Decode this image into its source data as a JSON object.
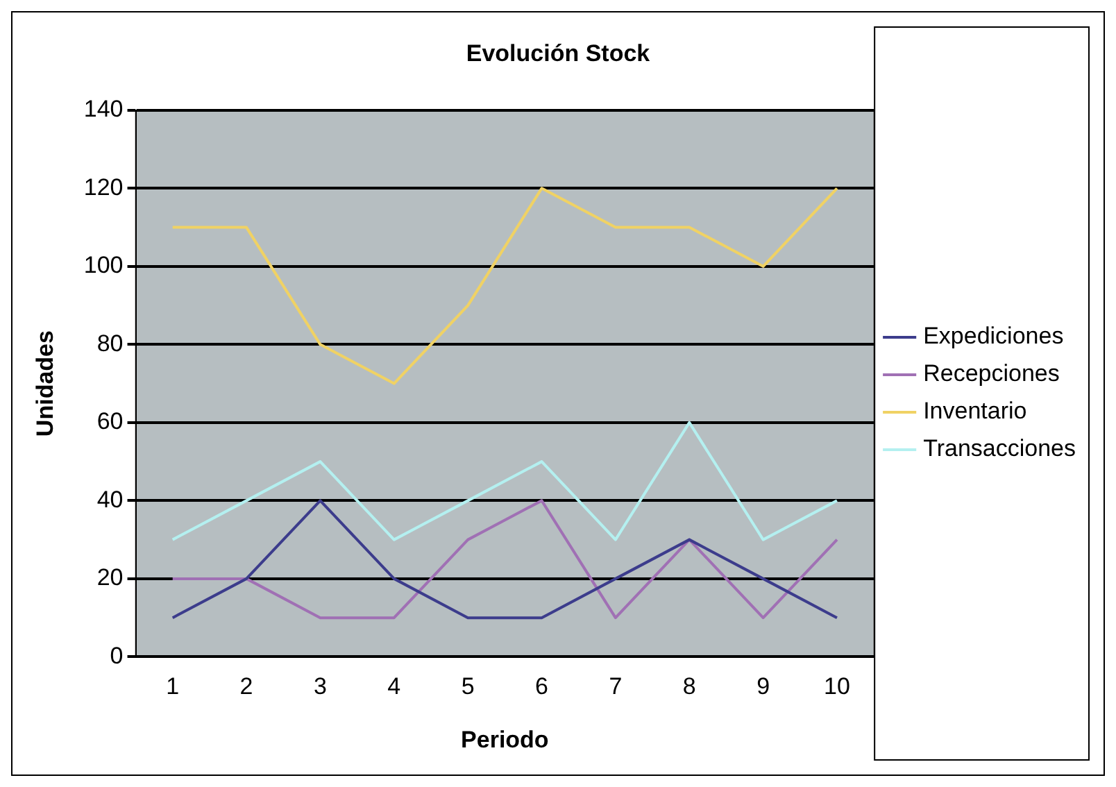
{
  "chart_data": {
    "type": "line",
    "title": "Evolución Stock",
    "xlabel": "Periodo",
    "ylabel": "Unidades",
    "categories": [
      "1",
      "2",
      "3",
      "4",
      "5",
      "6",
      "7",
      "8",
      "9",
      "10"
    ],
    "series": [
      {
        "name": "Expediciones",
        "color": "#3c3c8c",
        "values": [
          10,
          20,
          40,
          20,
          10,
          10,
          20,
          30,
          20,
          10
        ]
      },
      {
        "name": "Recepciones",
        "color": "#a070b4",
        "values": [
          20,
          20,
          10,
          10,
          30,
          40,
          10,
          30,
          10,
          30
        ]
      },
      {
        "name": "Inventario",
        "color": "#f0d264",
        "values": [
          110,
          110,
          80,
          70,
          90,
          120,
          110,
          110,
          100,
          120
        ]
      },
      {
        "name": "Transacciones",
        "color": "#b4f0f0",
        "values": [
          30,
          40,
          50,
          30,
          40,
          50,
          30,
          60,
          30,
          40
        ]
      }
    ],
    "ylim": [
      0,
      140
    ],
    "yticks": [
      0,
      20,
      40,
      60,
      80,
      100,
      120,
      140
    ],
    "grid": "y",
    "legend": "right",
    "marker": "none",
    "line_style": "solid"
  }
}
